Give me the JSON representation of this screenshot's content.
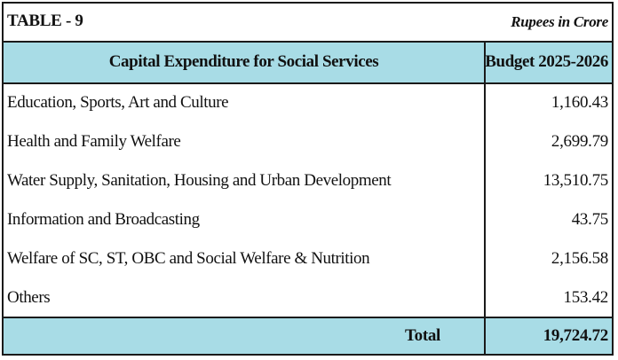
{
  "table": {
    "title": "TABLE - 9",
    "units": "Rupees in Crore",
    "column_headers": [
      "Capital Expenditure for Social Services",
      "Budget 2025-2026"
    ],
    "rows": [
      {
        "label": "Education, Sports, Art and Culture",
        "value": "1,160.43"
      },
      {
        "label": "Health and Family Welfare",
        "value": "2,699.79"
      },
      {
        "label": "Water Supply, Sanitation, Housing and Urban Development",
        "value": "13,510.75"
      },
      {
        "label": "Information and Broadcasting",
        "value": "43.75"
      },
      {
        "label": "Welfare of SC, ST, OBC and Social Welfare & Nutrition",
        "value": "2,156.58"
      },
      {
        "label": "Others",
        "value": "153.42"
      }
    ],
    "total": {
      "label": "Total",
      "value": "19,724.72"
    }
  },
  "colors": {
    "header_background": "#a8dce6",
    "border": "#1a1a1a",
    "text": "#111111"
  }
}
